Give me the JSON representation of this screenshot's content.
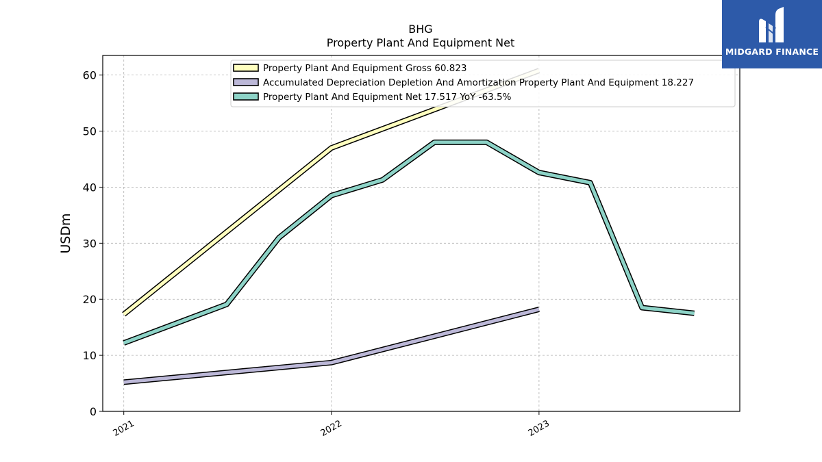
{
  "chart_data": {
    "type": "line",
    "title": "BHG",
    "subtitle": "Property Plant And Equipment Net",
    "ylabel": "USDm",
    "xlabel": "",
    "ylim": [
      0,
      63.5
    ],
    "xlim": [
      "2020-11-25",
      "2023-12-20"
    ],
    "yticks": [
      0,
      10,
      20,
      30,
      40,
      50,
      60
    ],
    "xticks": [
      {
        "label": "2021",
        "date": "2021-01-01"
      },
      {
        "label": "2022",
        "date": "2022-01-01"
      },
      {
        "label": "2023",
        "date": "2023-01-01"
      }
    ],
    "grid": true,
    "legend_position": "top",
    "series": [
      {
        "name": "Property Plant And Equipment Gross  60.823",
        "color": "#ffffbf",
        "points": [
          {
            "x": "2021-01-01",
            "y": 17.3
          },
          {
            "x": "2022-01-01",
            "y": 47.0
          },
          {
            "x": "2023-01-01",
            "y": 60.8
          }
        ]
      },
      {
        "name": "Accumulated Depreciation Depletion And Amortization Property Plant And Equipment  18.227",
        "color": "#bcb8d8",
        "points": [
          {
            "x": "2021-01-01",
            "y": 5.2
          },
          {
            "x": "2022-01-01",
            "y": 8.7
          },
          {
            "x": "2023-01-01",
            "y": 18.2
          }
        ]
      },
      {
        "name": "Property Plant And Equipment Net  17.517 YoY -63.5%",
        "color": "#8dd3c7",
        "points": [
          {
            "x": "2021-01-01",
            "y": 12.2
          },
          {
            "x": "2021-07-01",
            "y": 19.1
          },
          {
            "x": "2021-10-01",
            "y": 31.0
          },
          {
            "x": "2022-01-01",
            "y": 38.5
          },
          {
            "x": "2022-04-01",
            "y": 41.3
          },
          {
            "x": "2022-07-01",
            "y": 48.0
          },
          {
            "x": "2022-10-01",
            "y": 48.0
          },
          {
            "x": "2023-01-01",
            "y": 42.6
          },
          {
            "x": "2023-04-01",
            "y": 40.8
          },
          {
            "x": "2023-07-01",
            "y": 18.5
          },
          {
            "x": "2023-10-01",
            "y": 17.5
          }
        ]
      }
    ]
  },
  "logo": {
    "name": "MIDGARD FINANCE",
    "icon": "midgard-m-logo-icon",
    "background": "#2d5aa9"
  }
}
